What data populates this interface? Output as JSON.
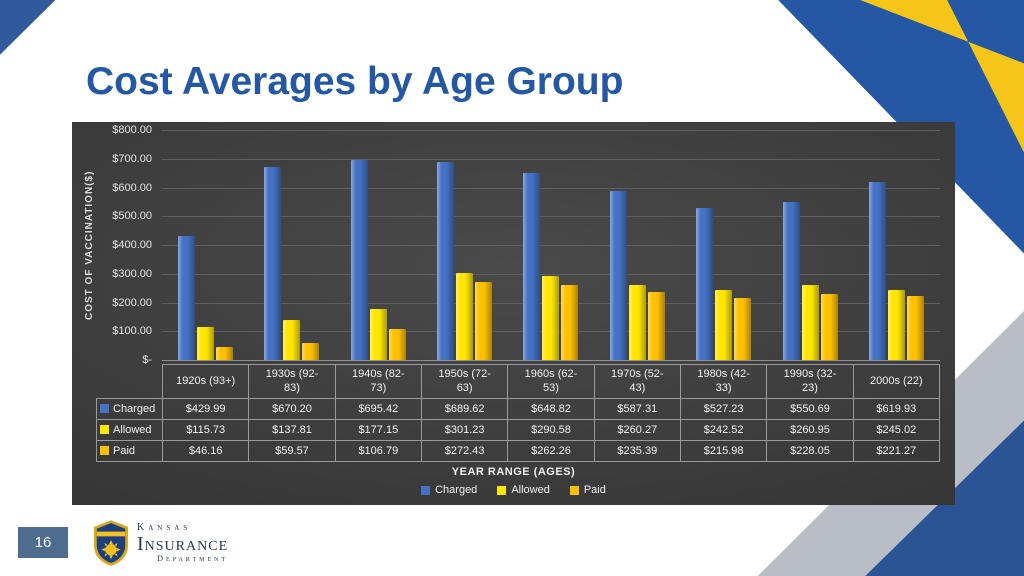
{
  "slide": {
    "title": "Cost Averages by Age Group"
  },
  "footer": {
    "page_number": "16",
    "logo": {
      "line1": "Kansas",
      "line2": "Insurance",
      "line3": "Department"
    }
  },
  "colors": {
    "accent_blue": "#2457a4",
    "accent_yellow": "#f5c518",
    "charged": "#4472C4",
    "allowed": "#FFE600",
    "paid": "#FFC000"
  },
  "chart_data": {
    "type": "bar",
    "title": "",
    "xlabel": "YEAR RANGE (AGES)",
    "ylabel": "COST OF VACCINATION($)",
    "ylim": [
      0,
      800
    ],
    "grid": true,
    "legend_position": "bottom",
    "ytick_labels": [
      "$800.00",
      "$700.00",
      "$600.00",
      "$500.00",
      "$400.00",
      "$300.00",
      "$200.00",
      "$100.00",
      "$-"
    ],
    "categories": [
      "1920s (93+)",
      "1930s (92-83)",
      "1940s (82-73)",
      "1950s (72-63)",
      "1960s (62-53)",
      "1970s (52-43)",
      "1980s (42-33)",
      "1990s (32-23)",
      "2000s (22)"
    ],
    "series": [
      {
        "name": "Charged",
        "color": "#4472C4",
        "values": [
          429.99,
          670.2,
          695.42,
          689.62,
          648.82,
          587.31,
          527.23,
          550.69,
          619.93
        ]
      },
      {
        "name": "Allowed",
        "color": "#FFE600",
        "values": [
          115.73,
          137.81,
          177.15,
          301.23,
          290.58,
          260.27,
          242.52,
          260.95,
          245.02
        ]
      },
      {
        "name": "Paid",
        "color": "#FFC000",
        "values": [
          46.16,
          59.57,
          106.79,
          272.43,
          262.26,
          235.39,
          215.98,
          228.05,
          221.27
        ]
      }
    ]
  }
}
